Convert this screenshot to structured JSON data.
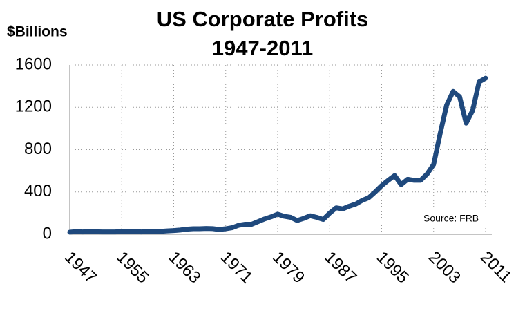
{
  "chart_data": {
    "type": "line",
    "title": "US Corporate Profits",
    "subtitle": "1947-2011",
    "y_label": "$Billions",
    "annotation": "Source:  FRB",
    "x": [
      1947,
      1948,
      1949,
      1950,
      1951,
      1952,
      1953,
      1954,
      1955,
      1956,
      1957,
      1958,
      1959,
      1960,
      1961,
      1962,
      1963,
      1964,
      1965,
      1966,
      1967,
      1968,
      1969,
      1970,
      1971,
      1972,
      1973,
      1974,
      1975,
      1976,
      1977,
      1978,
      1979,
      1980,
      1981,
      1982,
      1983,
      1984,
      1985,
      1986,
      1987,
      1988,
      1989,
      1990,
      1991,
      1992,
      1993,
      1994,
      1995,
      1996,
      1997,
      1998,
      1999,
      2000,
      2001,
      2002,
      2003,
      2004,
      2005,
      2006,
      2007,
      2008,
      2009,
      2010,
      2011
    ],
    "series": [
      {
        "name": "US Corporate Profits",
        "color": "#1f497d",
        "values": [
          20,
          25,
          22,
          28,
          24,
          22,
          22,
          22,
          28,
          28,
          28,
          22,
          28,
          27,
          28,
          32,
          35,
          40,
          48,
          52,
          52,
          55,
          53,
          45,
          52,
          62,
          85,
          95,
          95,
          120,
          145,
          165,
          190,
          170,
          160,
          130,
          150,
          175,
          160,
          140,
          200,
          250,
          240,
          265,
          285,
          320,
          345,
          400,
          460,
          510,
          555,
          470,
          520,
          510,
          510,
          570,
          660,
          950,
          1220,
          1350,
          1300,
          1050,
          1170,
          1440,
          1475
        ]
      }
    ],
    "xlim": [
      1947,
      2011
    ],
    "xticks": [
      1947,
      1955,
      1963,
      1971,
      1979,
      1987,
      1995,
      2003,
      2011
    ],
    "ylim": [
      0,
      1600
    ],
    "yticks": [
      0,
      400,
      800,
      1200,
      1600
    ],
    "grid": true
  }
}
